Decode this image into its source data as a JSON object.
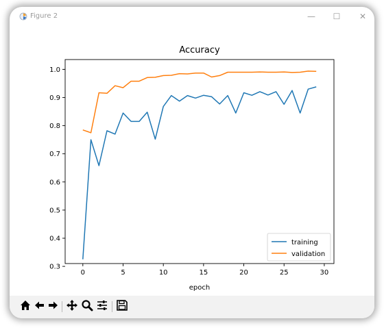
{
  "window": {
    "title": "Figure 2",
    "controls": {
      "minimize": "—",
      "maximize": "☐",
      "close": "✕"
    }
  },
  "toolbar": {
    "buttons": [
      "home-icon",
      "back-icon",
      "forward-icon",
      "pan-icon",
      "zoom-icon",
      "configure-subplots-icon",
      "save-icon"
    ]
  },
  "chart_data": {
    "type": "line",
    "title": "Accuracy",
    "xlabel": "epoch",
    "ylabel": "",
    "xlim": [
      -2.2,
      31.2
    ],
    "ylim": [
      0.31,
      1.035
    ],
    "xticks": [
      0,
      5,
      10,
      15,
      20,
      25,
      30
    ],
    "yticks": [
      0.3,
      0.4,
      0.5,
      0.6,
      0.7,
      0.8,
      0.9,
      1.0
    ],
    "ytick_labels": [
      "0.3",
      "0.4",
      "0.5",
      "0.6",
      "0.7",
      "0.8",
      "0.9",
      "1.0"
    ],
    "legend": "lower-right",
    "grid": false,
    "x": [
      0,
      1,
      2,
      3,
      4,
      5,
      6,
      7,
      8,
      9,
      10,
      11,
      12,
      13,
      14,
      15,
      16,
      17,
      18,
      19,
      20,
      21,
      22,
      23,
      24,
      25,
      26,
      27,
      28,
      29
    ],
    "series": [
      {
        "name": "training",
        "color": "#1f77b4",
        "values": [
          0.325,
          0.75,
          0.658,
          0.782,
          0.77,
          0.845,
          0.815,
          0.815,
          0.848,
          0.752,
          0.868,
          0.907,
          0.887,
          0.907,
          0.898,
          0.908,
          0.903,
          0.877,
          0.907,
          0.845,
          0.917,
          0.908,
          0.921,
          0.909,
          0.921,
          0.876,
          0.925,
          0.845,
          0.93,
          0.938
        ]
      },
      {
        "name": "validation",
        "color": "#ff7f0e",
        "values": [
          0.785,
          0.775,
          0.917,
          0.915,
          0.942,
          0.935,
          0.958,
          0.958,
          0.971,
          0.972,
          0.978,
          0.979,
          0.985,
          0.984,
          0.987,
          0.987,
          0.973,
          0.978,
          0.99,
          0.99,
          0.99,
          0.99,
          0.991,
          0.99,
          0.99,
          0.991,
          0.989,
          0.99,
          0.994,
          0.993
        ]
      }
    ]
  }
}
